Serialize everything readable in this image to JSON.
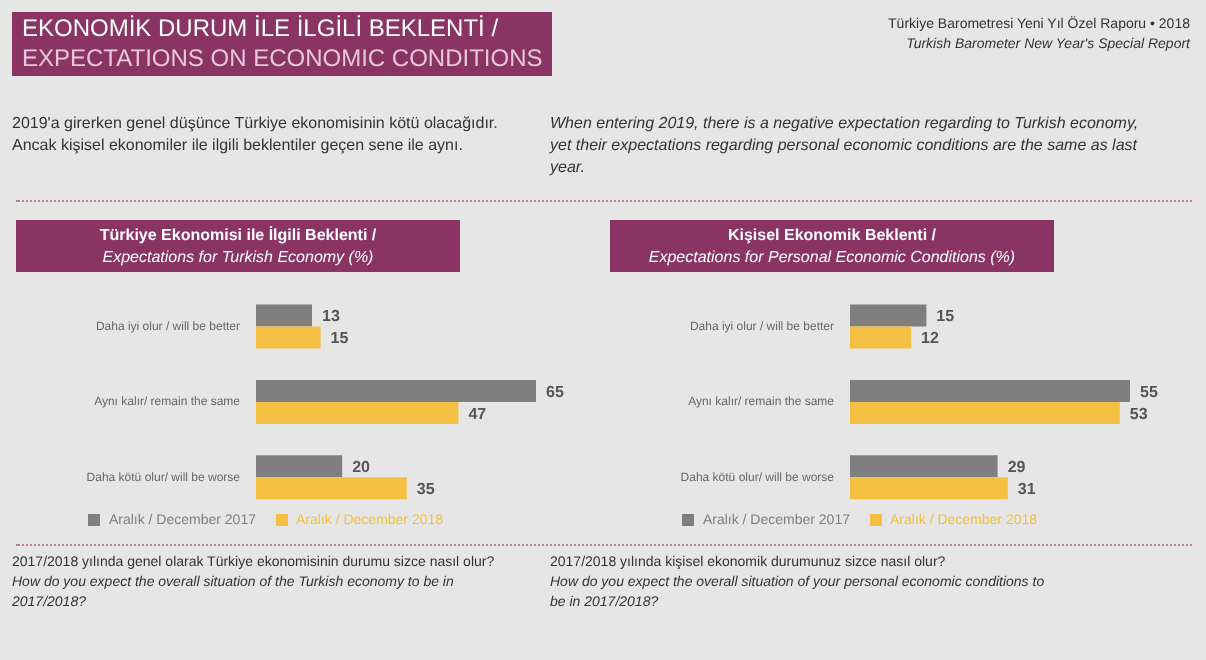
{
  "chart_data": [
    {
      "type": "bar",
      "orientation": "horizontal",
      "title": "Türkiye Ekonomisi ile İlgili Beklenti /",
      "subtitle": "Expectations for Turkish Economy (%)",
      "categories": [
        "Daha iyi olur / will be better",
        "Aynı kalır/ remain the same",
        "Daha kötü olur/ will be worse"
      ],
      "series": [
        {
          "name": "Aralık / December 2017",
          "color": "#7f7f7f",
          "values": [
            13,
            65,
            20
          ]
        },
        {
          "name": "Aralık / December 2018",
          "color": "#f4c043",
          "values": [
            15,
            47,
            35
          ]
        }
      ],
      "data_labels": true,
      "legend": "bottom",
      "grid": false,
      "annotations": [
        "EKONOMİK DURUM İLE İLGİLİ BEKLENTİ /",
        "EXPECTATIONS ON ECONOMIC CONDITIONS",
        "Türkiye Barometresi Yeni Yıl Özel Raporu • 2018",
        "Turkish Barometer New Year's Special Report",
        "2019'a girerken genel düşünce Türkiye ekonomisinin kötü olacağıdır. Ancak kişisel ekonomiler ile ilgili beklentiler geçen sene ile aynı.",
        "2017/2018 yılında genel olarak Türkiye ekonomisinin durumu sizce nasıl olur?",
        "How do you expect the overall situation of the Turkish economy to be in 2017/2018?"
      ]
    },
    {
      "type": "bar",
      "orientation": "horizontal",
      "title": "Kişisel Ekonomik Beklenti /",
      "subtitle": "Expectations for Personal Economic Conditions (%)",
      "categories": [
        "Daha iyi olur / will be better",
        "Aynı kalır/ remain the same",
        "Daha kötü olur/ will be worse"
      ],
      "series": [
        {
          "name": "Aralık / December 2017",
          "color": "#7f7f7f",
          "values": [
            15,
            55,
            29
          ]
        },
        {
          "name": "Aralık / December 2018",
          "color": "#f4c043",
          "values": [
            12,
            53,
            31
          ]
        }
      ],
      "data_labels": true,
      "legend": "bottom",
      "grid": false,
      "annotations": [
        "When entering 2019, there is a negative expectation regarding to Turkish economy, yet their expectations regarding personal economic conditions are the same as last year.",
        "2017/2018 yılında kişisel ekonomik durumunuz sizce nasıl olur?",
        "How do you expect the overall situation of your personal economic conditions to be in 2017/2018?"
      ]
    }
  ]
}
